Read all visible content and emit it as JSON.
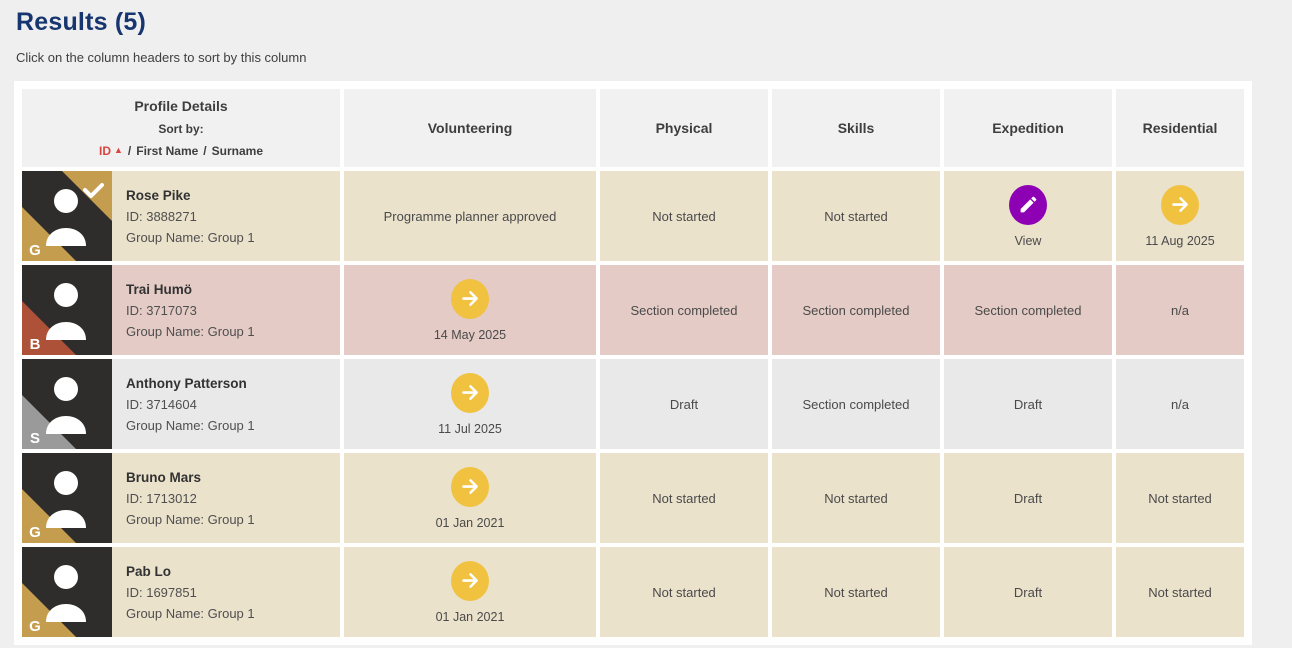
{
  "colors": {
    "title_navy": "#17356E",
    "sort_active_red": "#D9453F",
    "row_gold_bg": "#EBE2CC",
    "row_bronze_bg": "#E4CBC6",
    "row_silver_bg": "#E9E9EA",
    "header_cell_bg": "#F1F1F2",
    "avatar_dark": "#2E2D2C",
    "badge_gold": "#C59D4E",
    "badge_bronze": "#AD5138",
    "badge_silver": "#9A9A9A",
    "action_yellow": "#F0C23F",
    "action_purple": "#8D00B4",
    "page_bg": "#EFEFF0"
  },
  "page": {
    "title": "Results (5)",
    "subtitle": "Click on the column headers to sort by this column"
  },
  "table_header": {
    "profile_title": "Profile Details",
    "sort_label": "Sort by:",
    "sort_id": "ID",
    "sort_id_arrow": "▲",
    "sort_sep_1": "/",
    "sort_first_name": "First Name",
    "sort_sep_2": "/",
    "sort_surname": "Surname",
    "columns": {
      "volunteering": "Volunteering",
      "physical": "Physical",
      "skills": "Skills",
      "expedition": "Expedition",
      "residential": "Residential"
    }
  },
  "rows": [
    {
      "name": "Rose Pike",
      "id": "ID: 3888271",
      "group": "Group Name: Group 1",
      "level_badge": "G",
      "theme": "gold",
      "approved_tick": true,
      "cells": {
        "volunteering": {
          "type": "text",
          "text": "Programme planner approved"
        },
        "physical": {
          "type": "text",
          "text": "Not started"
        },
        "skills": {
          "type": "text",
          "text": "Not started"
        },
        "expedition": {
          "type": "icon",
          "icon": "pencil-icon",
          "label": "View"
        },
        "residential": {
          "type": "icon",
          "icon": "arrow-right-icon",
          "label": "11 Aug 2025"
        }
      }
    },
    {
      "name": "Trai Humö",
      "id": "ID: 3717073",
      "group": "Group Name: Group 1",
      "level_badge": "B",
      "theme": "bronze",
      "approved_tick": false,
      "cells": {
        "volunteering": {
          "type": "icon",
          "icon": "arrow-right-icon",
          "label": "14 May 2025"
        },
        "physical": {
          "type": "text",
          "text": "Section completed"
        },
        "skills": {
          "type": "text",
          "text": "Section completed"
        },
        "expedition": {
          "type": "text",
          "text": "Section completed"
        },
        "residential": {
          "type": "text",
          "text": "n/a"
        }
      }
    },
    {
      "name": "Anthony Patterson",
      "id": "ID: 3714604",
      "group": "Group Name: Group 1",
      "level_badge": "S",
      "theme": "silver",
      "approved_tick": false,
      "cells": {
        "volunteering": {
          "type": "icon",
          "icon": "arrow-right-icon",
          "label": "11 Jul 2025"
        },
        "physical": {
          "type": "text",
          "text": "Draft"
        },
        "skills": {
          "type": "text",
          "text": "Section completed"
        },
        "expedition": {
          "type": "text",
          "text": "Draft"
        },
        "residential": {
          "type": "text",
          "text": "n/a"
        }
      }
    },
    {
      "name": "Bruno Mars",
      "id": "ID: 1713012",
      "group": "Group Name: Group 1",
      "level_badge": "G",
      "theme": "gold",
      "approved_tick": false,
      "cells": {
        "volunteering": {
          "type": "icon",
          "icon": "arrow-right-icon",
          "label": "01 Jan 2021"
        },
        "physical": {
          "type": "text",
          "text": "Not started"
        },
        "skills": {
          "type": "text",
          "text": "Not started"
        },
        "expedition": {
          "type": "text",
          "text": "Draft"
        },
        "residential": {
          "type": "text",
          "text": "Not started"
        }
      }
    },
    {
      "name": "Pab Lo",
      "id": "ID: 1697851",
      "group": "Group Name: Group 1",
      "level_badge": "G",
      "theme": "gold",
      "approved_tick": false,
      "cells": {
        "volunteering": {
          "type": "icon",
          "icon": "arrow-right-icon",
          "label": "01 Jan 2021"
        },
        "physical": {
          "type": "text",
          "text": "Not started"
        },
        "skills": {
          "type": "text",
          "text": "Not started"
        },
        "expedition": {
          "type": "text",
          "text": "Draft"
        },
        "residential": {
          "type": "text",
          "text": "Not started"
        }
      }
    }
  ]
}
